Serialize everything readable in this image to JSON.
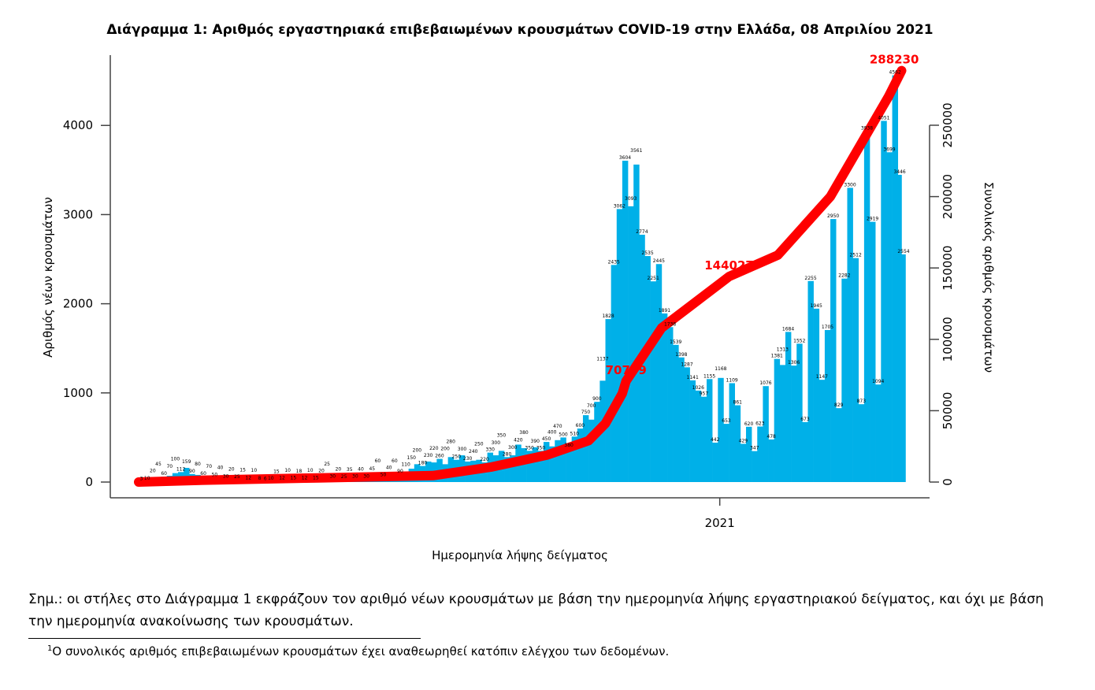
{
  "chart_data": {
    "type": "bar+line",
    "title": "Διάγραμμα 1: Αριθμός εργαστηριακά επιβεβαιωμένων κρουσμάτων COVID-19 στην Ελλάδα, 08 Απριλίου 2021",
    "xlabel": "Ημερομηνία λήψης δείγματος",
    "ylabel_left": "Αριθμός νέων κρουσμάτων",
    "ylabel_right": "Συνολικός αριθμός κρουσμάτων",
    "ylim_left": [
      0,
      4700
    ],
    "ylim_right": [
      0,
      259400
    ],
    "left_ticks": [
      "0",
      "1000",
      "2000",
      "3000",
      "4000"
    ],
    "right_ticks": [
      "0",
      "50000",
      "100000",
      "150000",
      "200000",
      "250000"
    ],
    "x_ticks": [
      {
        "date": "2021-01-01",
        "label": "2021"
      }
    ],
    "xlim": [
      "2020-02-22",
      "2021-04-12"
    ],
    "grid": false,
    "colors": {
      "bars": "#00b0e8",
      "cumulative": "#ff0000"
    },
    "daily": {
      "dates": [
        "2020-02-26",
        "2020-02-29",
        "2020-03-03",
        "2020-03-06",
        "2020-03-09",
        "2020-03-12",
        "2020-03-15",
        "2020-03-18",
        "2020-03-21",
        "2020-03-24",
        "2020-03-27",
        "2020-03-30",
        "2020-04-02",
        "2020-04-05",
        "2020-04-08",
        "2020-04-11",
        "2020-04-14",
        "2020-04-17",
        "2020-04-20",
        "2020-04-23",
        "2020-04-26",
        "2020-04-29",
        "2020-05-02",
        "2020-05-05",
        "2020-05-08",
        "2020-05-11",
        "2020-05-14",
        "2020-05-17",
        "2020-05-20",
        "2020-05-23",
        "2020-05-26",
        "2020-05-29",
        "2020-06-01",
        "2020-06-04",
        "2020-06-07",
        "2020-06-10",
        "2020-06-13",
        "2020-06-16",
        "2020-06-19",
        "2020-06-22",
        "2020-06-25",
        "2020-06-28",
        "2020-07-01",
        "2020-07-04",
        "2020-07-07",
        "2020-07-10",
        "2020-07-13",
        "2020-07-16",
        "2020-07-19",
        "2020-07-22",
        "2020-07-25",
        "2020-07-28",
        "2020-07-31",
        "2020-08-03",
        "2020-08-06",
        "2020-08-09",
        "2020-08-12",
        "2020-08-15",
        "2020-08-18",
        "2020-08-21",
        "2020-08-24",
        "2020-08-27",
        "2020-08-30",
        "2020-09-02",
        "2020-09-05",
        "2020-09-08",
        "2020-09-11",
        "2020-09-14",
        "2020-09-17",
        "2020-09-20",
        "2020-09-23",
        "2020-09-26",
        "2020-09-29",
        "2020-10-02",
        "2020-10-05",
        "2020-10-08",
        "2020-10-11",
        "2020-10-14",
        "2020-10-17",
        "2020-10-20",
        "2020-10-23",
        "2020-10-26",
        "2020-10-29",
        "2020-11-01",
        "2020-11-04",
        "2020-11-07",
        "2020-11-10",
        "2020-11-13",
        "2020-11-16",
        "2020-11-19",
        "2020-11-22",
        "2020-11-25",
        "2020-11-28",
        "2020-12-01",
        "2020-12-04",
        "2020-12-07",
        "2020-12-10",
        "2020-12-13",
        "2020-12-16",
        "2020-12-19",
        "2020-12-22",
        "2020-12-25",
        "2020-12-28",
        "2020-12-31",
        "2021-01-03",
        "2021-01-06",
        "2021-01-09",
        "2021-01-12",
        "2021-01-15",
        "2021-01-18",
        "2021-01-21",
        "2021-01-24",
        "2021-01-27",
        "2021-01-30",
        "2021-02-02",
        "2021-02-05",
        "2021-02-08",
        "2021-02-11",
        "2021-02-14",
        "2021-02-17",
        "2021-02-20",
        "2021-02-23",
        "2021-02-26",
        "2021-03-01",
        "2021-03-04",
        "2021-03-07",
        "2021-03-10",
        "2021-03-13",
        "2021-03-16",
        "2021-03-19",
        "2021-03-22",
        "2021-03-25",
        "2021-03-28",
        "2021-03-31",
        "2021-04-03",
        "2021-04-06",
        "2021-04-08"
      ],
      "values": [
        3,
        10,
        20,
        45,
        60,
        70,
        100,
        112,
        159,
        90,
        80,
        60,
        70,
        50,
        40,
        30,
        20,
        25,
        15,
        12,
        10,
        8,
        6,
        10,
        15,
        12,
        10,
        15,
        18,
        12,
        10,
        15,
        20,
        25,
        30,
        20,
        25,
        35,
        30,
        40,
        30,
        45,
        60,
        50,
        40,
        60,
        90,
        110,
        150,
        200,
        180,
        230,
        220,
        260,
        200,
        280,
        250,
        300,
        230,
        240,
        250,
        220,
        330,
        300,
        350,
        280,
        300,
        420,
        380,
        350,
        390,
        350,
        450,
        400,
        470,
        500,
        380,
        510,
        600,
        750,
        700,
        900,
        1137,
        1828,
        2435,
        3062,
        3604,
        3093,
        3561,
        2774,
        2535,
        2251,
        2445,
        1891,
        1738,
        1539,
        1398,
        1287,
        1141,
        1026,
        957,
        1155,
        442,
        1168,
        653,
        1109,
        861,
        429,
        620,
        347,
        623,
        1076,
        478,
        1381,
        1313,
        1684,
        1306,
        1552,
        673,
        2255,
        1945,
        1147,
        1705,
        2950,
        829,
        2282,
        3300,
        2512,
        873,
        3938,
        2919,
        1094,
        4051,
        3699,
        4562,
        3446,
        2554
      ]
    },
    "cumulative": {
      "dates": [
        "2020-02-26",
        "2020-04-01",
        "2020-06-01",
        "2020-08-01",
        "2020-09-01",
        "2020-10-01",
        "2020-10-23",
        "2020-11-01",
        "2020-11-10",
        "2020-11-12",
        "2020-12-01",
        "2021-01-01",
        "2021-01-06",
        "2021-02-01",
        "2021-03-01",
        "2021-04-01",
        "2021-04-08"
      ],
      "values": [
        0,
        1300,
        2950,
        4550,
        10500,
        19000,
        29000,
        41000,
        62000,
        70769,
        108000,
        139000,
        144027,
        159000,
        200000,
        270000,
        288230
      ]
    },
    "annotations": [
      {
        "date": "2020-11-12",
        "label": "70769"
      },
      {
        "date": "2021-01-06",
        "label": "144027"
      },
      {
        "date": "2021-04-08",
        "label": "288230"
      }
    ]
  },
  "note": "Σημ.: οι στήλες στο Διάγραμμα 1 εκφράζουν τον αριθμό νέων κρουσμάτων με βάση την ημερομηνία λήψης εργαστηριακού δείγματος, και όχι με βάση την ημερομηνία ανακοίνωσης των κρουσμάτων.",
  "footnote": {
    "marker": "1",
    "text": "Ο συνολικός αριθμός επιβεβαιωμένων κρουσμάτων έχει αναθεωρηθεί κατόπιν ελέγχου των δεδομένων."
  }
}
